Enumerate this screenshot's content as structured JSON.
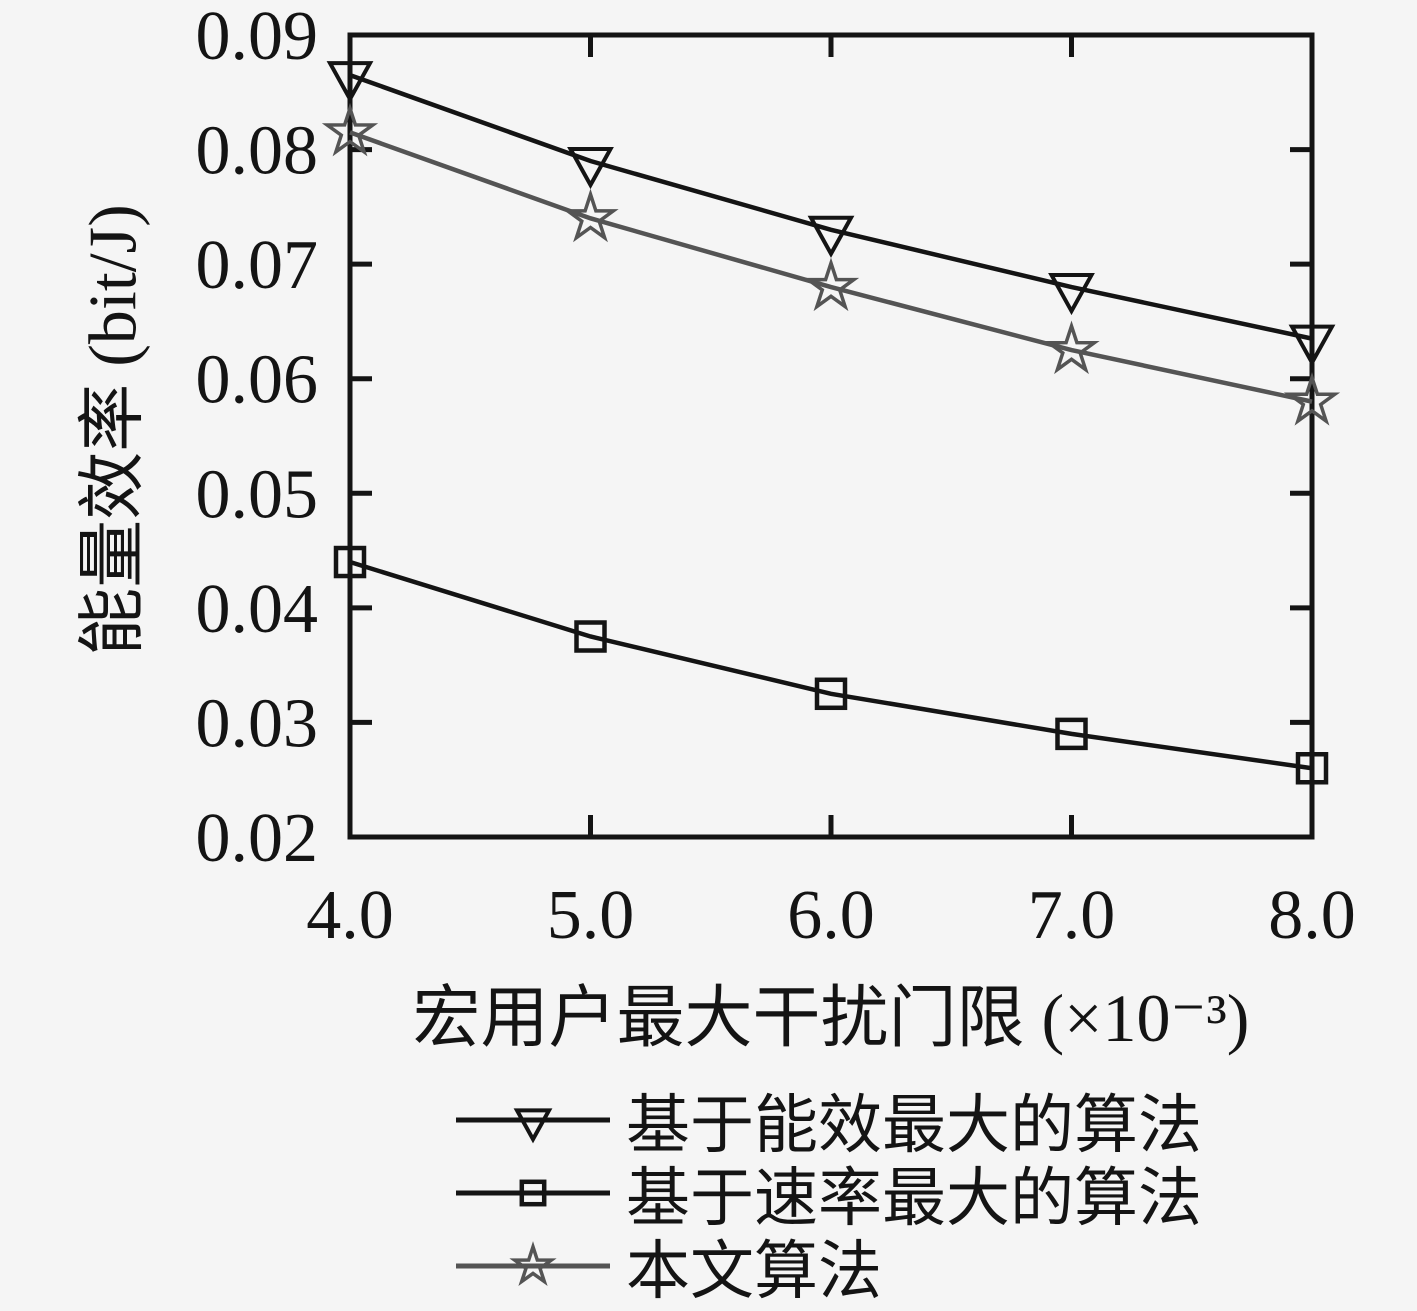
{
  "figure": {
    "background": "#f5f5f5",
    "foreground": "#141414"
  },
  "chart_data": {
    "type": "line",
    "title": "",
    "xlabel": "宏用户最大干扰门限 (×10⁻³)",
    "ylabel": "能量效率 (bit/J)",
    "x": [
      4.0,
      5.0,
      6.0,
      7.0,
      8.0
    ],
    "xtick_labels": [
      "4.0",
      "5.0",
      "6.0",
      "7.0",
      "8.0"
    ],
    "yticks": [
      0.02,
      0.03,
      0.04,
      0.05,
      0.06,
      0.07,
      0.08,
      0.09
    ],
    "ytick_labels": [
      "0.02",
      "0.03",
      "0.04",
      "0.05",
      "0.06",
      "0.07",
      "0.08",
      "0.09"
    ],
    "xlim": [
      4.0,
      8.0
    ],
    "ylim": [
      0.02,
      0.09
    ],
    "grid": false,
    "legend_position": "below-chart",
    "series": [
      {
        "name": "基于能效最大的算法",
        "marker": "triangle-down",
        "color": "#141414",
        "values": [
          0.0865,
          0.079,
          0.073,
          0.068,
          0.0635
        ]
      },
      {
        "name": "基于速率最大的算法",
        "marker": "square",
        "color": "#141414",
        "values": [
          0.044,
          0.0375,
          0.0325,
          0.029,
          0.026
        ]
      },
      {
        "name": "本文算法",
        "marker": "star",
        "color": "#545454",
        "values": [
          0.0815,
          0.074,
          0.068,
          0.0625,
          0.058
        ]
      }
    ]
  }
}
